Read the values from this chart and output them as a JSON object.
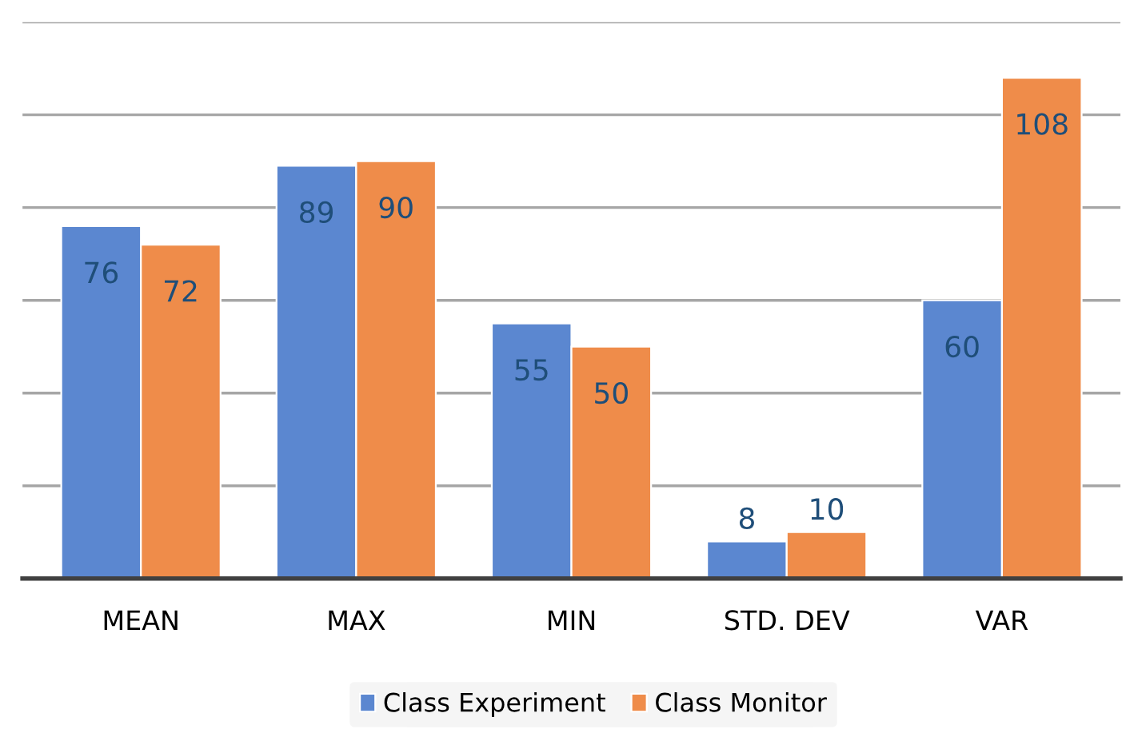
{
  "chart_data": {
    "type": "bar",
    "categories": [
      "MEAN",
      "MAX",
      "MIN",
      "STD. DEV",
      "VAR"
    ],
    "series": [
      {
        "name": "Class Experiment",
        "color": "#5b87d0",
        "values": [
          76,
          89,
          55,
          8,
          60
        ]
      },
      {
        "name": "Class Monitor",
        "color": "#ef8c4a",
        "values": [
          72,
          90,
          50,
          10,
          108
        ]
      }
    ],
    "ylim": [
      0,
      120
    ],
    "yticks": [
      {
        "value": 0,
        "label": null
      },
      {
        "value": 20,
        "label": null
      },
      {
        "value": 40,
        "label": null
      },
      {
        "value": 60,
        "label": null
      },
      {
        "value": 80,
        "label": null
      },
      {
        "value": 100,
        "label": null
      },
      {
        "value": 120,
        "label": null
      }
    ],
    "grid": "y",
    "legend": "bottom",
    "data_labels": true,
    "tick_labels": "x"
  }
}
